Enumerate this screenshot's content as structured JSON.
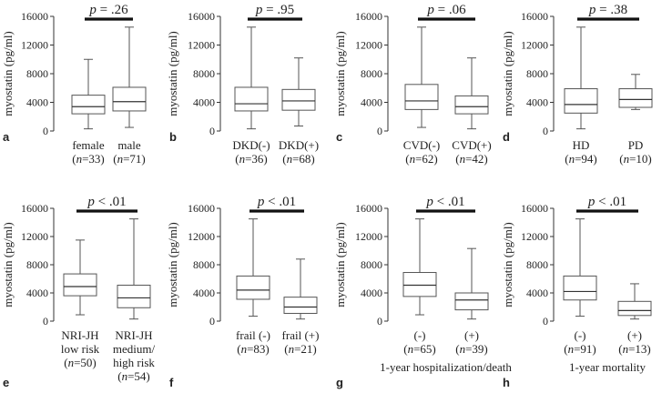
{
  "chart_data": [
    {
      "type": "boxplot",
      "panel_label": "a",
      "p_value": "= .26",
      "ylabel": "myostatin (pg/ml)",
      "ylim": [
        0,
        16000
      ],
      "y_ticks": [
        "0",
        "4000",
        "8000",
        "12000",
        "16000"
      ],
      "xlabel": "",
      "categories": [
        {
          "lines": [
            "female",
            "(n=33)"
          ],
          "min": 300,
          "q1": 2400,
          "median": 3400,
          "q3": 5000,
          "max": 10000
        },
        {
          "lines": [
            "male",
            "(n=71)"
          ],
          "min": 500,
          "q1": 2800,
          "median": 4100,
          "q3": 6100,
          "max": 14500
        }
      ]
    },
    {
      "type": "boxplot",
      "panel_label": "b",
      "p_value": "= .95",
      "ylabel": "myostatin (pg/ml)",
      "ylim": [
        0,
        16000
      ],
      "y_ticks": [
        "0",
        "4000",
        "8000",
        "12000",
        "16000"
      ],
      "xlabel": "",
      "categories": [
        {
          "lines": [
            "DKD(-)",
            "(n=36)"
          ],
          "min": 300,
          "q1": 2800,
          "median": 3800,
          "q3": 6100,
          "max": 14500
        },
        {
          "lines": [
            "DKD(+)",
            "(n=68)"
          ],
          "min": 700,
          "q1": 2900,
          "median": 4200,
          "q3": 5800,
          "max": 10200
        }
      ]
    },
    {
      "type": "boxplot",
      "panel_label": "c",
      "p_value": "= .06",
      "ylabel": "myostatin (pg/ml)",
      "ylim": [
        0,
        16000
      ],
      "y_ticks": [
        "0",
        "4000",
        "8000",
        "12000",
        "16000"
      ],
      "xlabel": "",
      "categories": [
        {
          "lines": [
            "CVD(-)",
            "(n=62)"
          ],
          "min": 500,
          "q1": 3000,
          "median": 4200,
          "q3": 6500,
          "max": 14500
        },
        {
          "lines": [
            "CVD(+)",
            "(n=42)"
          ],
          "min": 300,
          "q1": 2400,
          "median": 3400,
          "q3": 4900,
          "max": 10200
        }
      ]
    },
    {
      "type": "boxplot",
      "panel_label": "d",
      "p_value": "= .38",
      "ylabel": "myostatin (pg/ml)",
      "ylim": [
        0,
        16000
      ],
      "y_ticks": [
        "0",
        "4000",
        "8000",
        "12000",
        "16000"
      ],
      "xlabel": "",
      "categories": [
        {
          "lines": [
            "HD",
            "(n=94)"
          ],
          "min": 300,
          "q1": 2500,
          "median": 3700,
          "q3": 5900,
          "max": 14500
        },
        {
          "lines": [
            "PD",
            "(n=10)"
          ],
          "min": 3000,
          "q1": 3300,
          "median": 4400,
          "q3": 5900,
          "max": 7900
        }
      ]
    },
    {
      "type": "boxplot",
      "panel_label": "e",
      "p_value": "< .01",
      "ylabel": "myostatin (pg/ml)",
      "ylim": [
        0,
        16000
      ],
      "y_ticks": [
        "0",
        "4000",
        "8000",
        "12000",
        "16000"
      ],
      "xlabel": "",
      "categories": [
        {
          "lines": [
            "NRI-JH",
            "low risk",
            "(n=50)"
          ],
          "min": 900,
          "q1": 3600,
          "median": 4900,
          "q3": 6700,
          "max": 11500
        },
        {
          "lines": [
            "NRI-JH",
            "medium/",
            "high risk",
            "(n=54)"
          ],
          "min": 300,
          "q1": 1900,
          "median": 3300,
          "q3": 5100,
          "max": 14500
        }
      ]
    },
    {
      "type": "boxplot",
      "panel_label": "f",
      "p_value": "< .01",
      "ylabel": "myostatin (pg/ml)",
      "ylim": [
        0,
        16000
      ],
      "y_ticks": [
        "0",
        "4000",
        "8000",
        "12000",
        "16000"
      ],
      "xlabel": "",
      "categories": [
        {
          "lines": [
            "frail (-)",
            "(n=83)"
          ],
          "min": 700,
          "q1": 3100,
          "median": 4400,
          "q3": 6400,
          "max": 14500
        },
        {
          "lines": [
            "frail (+)",
            "(n=21)"
          ],
          "min": 300,
          "q1": 1100,
          "median": 2000,
          "q3": 3400,
          "max": 8800
        }
      ]
    },
    {
      "type": "boxplot",
      "panel_label": "g",
      "p_value": "< .01",
      "ylabel": "myostatin (pg/ml)",
      "ylim": [
        0,
        16000
      ],
      "y_ticks": [
        "0",
        "4000",
        "8000",
        "12000",
        "16000"
      ],
      "xlabel": "1-year hospitalization/death",
      "categories": [
        {
          "lines": [
            "(-)",
            "(n=65)"
          ],
          "min": 900,
          "q1": 3500,
          "median": 5100,
          "q3": 6900,
          "max": 14500
        },
        {
          "lines": [
            "(+)",
            "(n=39)"
          ],
          "min": 300,
          "q1": 1600,
          "median": 3000,
          "q3": 4000,
          "max": 10300
        }
      ]
    },
    {
      "type": "boxplot",
      "panel_label": "h",
      "p_value": "< .01",
      "ylabel": "myostatin (pg/ml)",
      "ylim": [
        0,
        16000
      ],
      "y_ticks": [
        "0",
        "4000",
        "8000",
        "12000",
        "16000"
      ],
      "xlabel": "1-year mortality",
      "categories": [
        {
          "lines": [
            "(-)",
            "(n=91)"
          ],
          "min": 700,
          "q1": 3000,
          "median": 4200,
          "q3": 6400,
          "max": 14500
        },
        {
          "lines": [
            "(+)",
            "(n=13)"
          ],
          "min": 300,
          "q1": 800,
          "median": 1500,
          "q3": 2800,
          "max": 5300
        }
      ]
    }
  ]
}
